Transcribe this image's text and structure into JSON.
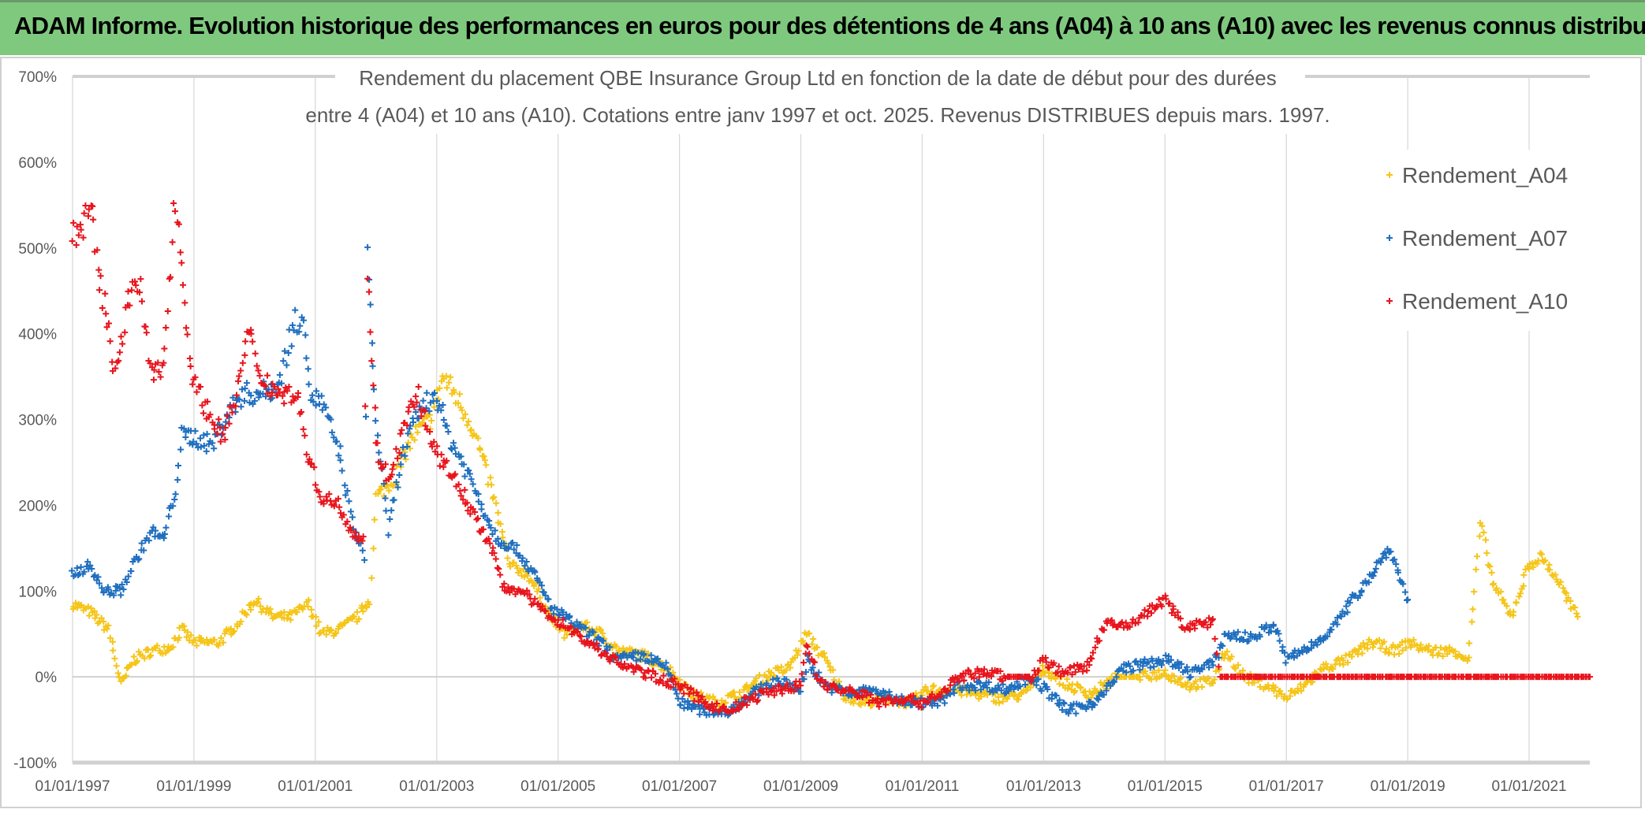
{
  "header": {
    "title": "ADAM Informe. Evolution historique des performances en euros pour des détentions de 4 ans (A04) à 10 ans (A10) avec les revenus connus distribués"
  },
  "chart_data": {
    "type": "scatter",
    "title_lines": [
      "Rendement du placement QBE Insurance Group Ltd en fonction de la date de début pour des durées",
      "entre 4 (A04) et 10 ans (A10). Cotations entre janv 1997 et oct. 2025. Revenus DISTRIBUES depuis mars. 1997."
    ],
    "marker": "plus",
    "x_type": "date",
    "xlim": [
      "1997-01-01",
      "2022-01-01"
    ],
    "ylim": [
      -100,
      700
    ],
    "y_unit": "%",
    "y_ticks": [
      "-100%",
      "0%",
      "100%",
      "200%",
      "300%",
      "400%",
      "500%",
      "600%",
      "700%"
    ],
    "x_ticks": [
      "01/01/1997",
      "01/01/1999",
      "01/01/2001",
      "01/01/2003",
      "01/01/2005",
      "01/01/2007",
      "01/01/2009",
      "01/01/2011",
      "01/01/2013",
      "01/01/2015",
      "01/01/2017",
      "01/01/2019",
      "01/01/2021"
    ],
    "grid": {
      "vertical": true,
      "horizontal_zero": true
    },
    "legend_position": "right",
    "series": [
      {
        "name": "Rendement_A04",
        "color": "#f5c518",
        "points": [
          [
            1997.0,
            85
          ],
          [
            1997.3,
            75
          ],
          [
            1997.6,
            55
          ],
          [
            1997.8,
            -10
          ],
          [
            1998.0,
            20
          ],
          [
            1998.3,
            30
          ],
          [
            1998.6,
            35
          ],
          [
            1998.8,
            55
          ],
          [
            1999.0,
            40
          ],
          [
            1999.4,
            40
          ],
          [
            1999.7,
            60
          ],
          [
            2000.0,
            90
          ],
          [
            2000.3,
            70
          ],
          [
            2000.6,
            70
          ],
          [
            2000.9,
            85
          ],
          [
            2001.1,
            50
          ],
          [
            2001.4,
            55
          ],
          [
            2001.7,
            70
          ],
          [
            2001.9,
            90
          ],
          [
            2002.0,
            210
          ],
          [
            2002.3,
            230
          ],
          [
            2002.6,
            280
          ],
          [
            2002.9,
            300
          ],
          [
            2003.1,
            350
          ],
          [
            2003.3,
            330
          ],
          [
            2003.6,
            290
          ],
          [
            2003.9,
            220
          ],
          [
            2004.2,
            130
          ],
          [
            2004.5,
            120
          ],
          [
            2004.8,
            80
          ],
          [
            2005.1,
            50
          ],
          [
            2005.4,
            60
          ],
          [
            2005.7,
            50
          ],
          [
            2006.0,
            30
          ],
          [
            2006.4,
            25
          ],
          [
            2006.8,
            10
          ],
          [
            2007.2,
            -20
          ],
          [
            2007.6,
            -30
          ],
          [
            2008.0,
            -20
          ],
          [
            2008.4,
            0
          ],
          [
            2008.8,
            10
          ],
          [
            2009.1,
            50
          ],
          [
            2009.4,
            20
          ],
          [
            2009.7,
            -20
          ],
          [
            2010.0,
            -30
          ],
          [
            2010.4,
            -25
          ],
          [
            2010.8,
            -30
          ],
          [
            2011.1,
            -15
          ],
          [
            2011.5,
            -15
          ],
          [
            2011.9,
            -20
          ],
          [
            2012.3,
            -25
          ],
          [
            2012.7,
            -20
          ],
          [
            2013.0,
            10
          ],
          [
            2013.4,
            -10
          ],
          [
            2013.8,
            -20
          ],
          [
            2014.2,
            0
          ],
          [
            2014.6,
            0
          ],
          [
            2015.0,
            5
          ],
          [
            2015.4,
            -10
          ],
          [
            2015.8,
            -5
          ],
          [
            2016.0,
            30
          ],
          [
            2016.3,
            0
          ],
          [
            2016.7,
            -10
          ],
          [
            2017.0,
            -25
          ],
          [
            2017.3,
            -10
          ],
          [
            2017.6,
            10
          ],
          [
            2018.0,
            20
          ],
          [
            2018.4,
            40
          ],
          [
            2018.8,
            30
          ],
          [
            2019.0,
            40
          ],
          [
            2019.4,
            30
          ],
          [
            2019.8,
            30
          ],
          [
            2020.0,
            20
          ],
          [
            2020.2,
            180
          ],
          [
            2020.4,
            110
          ],
          [
            2020.7,
            70
          ],
          [
            2021.0,
            130
          ],
          [
            2021.2,
            140
          ],
          [
            2021.5,
            110
          ],
          [
            2021.7,
            80
          ],
          [
            2021.8,
            70
          ]
        ]
      },
      {
        "name": "Rendement_A07",
        "color": "#1f6fbf",
        "points": [
          [
            1997.0,
            120
          ],
          [
            1997.3,
            130
          ],
          [
            1997.5,
            100
          ],
          [
            1997.8,
            100
          ],
          [
            1998.0,
            130
          ],
          [
            1998.3,
            170
          ],
          [
            1998.5,
            160
          ],
          [
            1998.7,
            220
          ],
          [
            1998.8,
            280
          ],
          [
            1999.0,
            280
          ],
          [
            1999.3,
            270
          ],
          [
            1999.5,
            300
          ],
          [
            1999.8,
            330
          ],
          [
            2000.1,
            330
          ],
          [
            2000.4,
            340
          ],
          [
            2000.6,
            400
          ],
          [
            2000.8,
            430
          ],
          [
            2000.9,
            330
          ],
          [
            2001.1,
            320
          ],
          [
            2001.4,
            260
          ],
          [
            2001.6,
            180
          ],
          [
            2001.8,
            140
          ],
          [
            2001.85,
            490
          ],
          [
            2002.0,
            300
          ],
          [
            2002.2,
            170
          ],
          [
            2002.4,
            250
          ],
          [
            2002.7,
            310
          ],
          [
            2003.0,
            330
          ],
          [
            2003.2,
            280
          ],
          [
            2003.5,
            240
          ],
          [
            2003.8,
            190
          ],
          [
            2004.0,
            160
          ],
          [
            2004.3,
            150
          ],
          [
            2004.6,
            120
          ],
          [
            2004.9,
            80
          ],
          [
            2005.3,
            60
          ],
          [
            2005.7,
            40
          ],
          [
            2006.0,
            20
          ],
          [
            2006.4,
            25
          ],
          [
            2006.8,
            10
          ],
          [
            2007.0,
            -30
          ],
          [
            2007.4,
            -40
          ],
          [
            2007.8,
            -40
          ],
          [
            2008.2,
            -20
          ],
          [
            2008.6,
            -5
          ],
          [
            2009.0,
            -15
          ],
          [
            2009.1,
            20
          ],
          [
            2009.4,
            -10
          ],
          [
            2009.8,
            -20
          ],
          [
            2010.2,
            -15
          ],
          [
            2010.5,
            -25
          ],
          [
            2010.9,
            -30
          ],
          [
            2011.3,
            -30
          ],
          [
            2011.6,
            -10
          ],
          [
            2012.0,
            -10
          ],
          [
            2012.4,
            -15
          ],
          [
            2012.8,
            0
          ],
          [
            2013.1,
            -20
          ],
          [
            2013.4,
            -40
          ],
          [
            2013.8,
            -30
          ],
          [
            2014.0,
            -20
          ],
          [
            2014.3,
            10
          ],
          [
            2014.7,
            15
          ],
          [
            2015.0,
            20
          ],
          [
            2015.4,
            5
          ],
          [
            2015.8,
            15
          ],
          [
            2016.0,
            50
          ],
          [
            2016.4,
            45
          ],
          [
            2016.8,
            60
          ],
          [
            2017.0,
            20
          ],
          [
            2017.4,
            35
          ],
          [
            2017.8,
            60
          ],
          [
            2018.2,
            100
          ],
          [
            2018.5,
            130
          ],
          [
            2018.7,
            150
          ],
          [
            2018.9,
            110
          ],
          [
            2019.0,
            90
          ]
        ]
      },
      {
        "name": "Rendement_A10",
        "color": "#e8141c",
        "points": [
          [
            1997.0,
            510
          ],
          [
            1997.3,
            540
          ],
          [
            1997.5,
            440
          ],
          [
            1997.7,
            360
          ],
          [
            1997.9,
            430
          ],
          [
            1998.1,
            460
          ],
          [
            1998.3,
            350
          ],
          [
            1998.5,
            360
          ],
          [
            1998.7,
            560
          ],
          [
            1998.9,
            400
          ],
          [
            1999.0,
            340
          ],
          [
            1999.3,
            300
          ],
          [
            1999.5,
            280
          ],
          [
            1999.7,
            330
          ],
          [
            1999.9,
            400
          ],
          [
            2000.1,
            350
          ],
          [
            2000.4,
            330
          ],
          [
            2000.7,
            330
          ],
          [
            2000.9,
            250
          ],
          [
            2001.1,
            210
          ],
          [
            2001.4,
            200
          ],
          [
            2001.6,
            170
          ],
          [
            2001.8,
            160
          ],
          [
            2001.85,
            480
          ],
          [
            2002.0,
            270
          ],
          [
            2002.2,
            230
          ],
          [
            2002.5,
            300
          ],
          [
            2002.7,
            330
          ],
          [
            2002.9,
            270
          ],
          [
            2003.1,
            250
          ],
          [
            2003.3,
            230
          ],
          [
            2003.6,
            190
          ],
          [
            2003.9,
            150
          ],
          [
            2004.1,
            105
          ],
          [
            2004.4,
            100
          ],
          [
            2004.7,
            80
          ],
          [
            2005.0,
            65
          ],
          [
            2005.3,
            50
          ],
          [
            2005.6,
            35
          ],
          [
            2005.9,
            20
          ],
          [
            2006.2,
            10
          ],
          [
            2006.6,
            0
          ],
          [
            2007.0,
            -10
          ],
          [
            2007.4,
            -30
          ],
          [
            2007.8,
            -40
          ],
          [
            2008.2,
            -25
          ],
          [
            2008.6,
            -15
          ],
          [
            2009.0,
            -10
          ],
          [
            2009.1,
            40
          ],
          [
            2009.3,
            -5
          ],
          [
            2009.6,
            -15
          ],
          [
            2010.0,
            -20
          ],
          [
            2010.3,
            -30
          ],
          [
            2010.6,
            -25
          ],
          [
            2011.0,
            -30
          ],
          [
            2011.3,
            -20
          ],
          [
            2011.6,
            0
          ],
          [
            2012.0,
            5
          ],
          [
            2012.4,
            0
          ],
          [
            2012.8,
            0
          ],
          [
            2013.0,
            20
          ],
          [
            2013.3,
            5
          ],
          [
            2013.7,
            10
          ],
          [
            2014.0,
            60
          ],
          [
            2014.4,
            60
          ],
          [
            2014.7,
            75
          ],
          [
            2015.0,
            90
          ],
          [
            2015.3,
            60
          ],
          [
            2015.6,
            60
          ],
          [
            2015.8,
            65
          ],
          [
            2015.9,
            0
          ],
          [
            2017.0,
            0
          ],
          [
            2018.0,
            0
          ],
          [
            2019.0,
            0
          ],
          [
            2020.0,
            0
          ],
          [
            2021.0,
            0
          ],
          [
            2022.0,
            0
          ]
        ]
      }
    ]
  }
}
